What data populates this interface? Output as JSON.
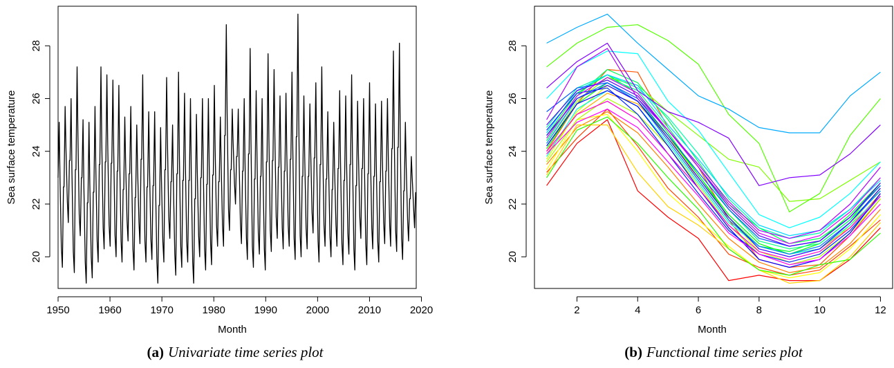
{
  "captions": {
    "a": {
      "label": "(a)",
      "text": "Univariate time series plot"
    },
    "b": {
      "label": "(b)",
      "text": "Functional time series plot"
    }
  },
  "chart_data": [
    {
      "type": "line",
      "xlabel": "Month",
      "ylabel": "Sea surface temperature",
      "xlim": [
        1950,
        2019
      ],
      "ylim": [
        18.8,
        29.5
      ],
      "xticks": [
        1950,
        1960,
        1970,
        1980,
        1990,
        2000,
        2010,
        2020
      ],
      "yticks": [
        20,
        22,
        24,
        26,
        28
      ],
      "color": "#000000",
      "peaks": [
        25.1,
        25.7,
        26.0,
        27.2,
        25.2,
        25.1,
        25.7,
        27.2,
        26.9,
        26.7,
        26.5,
        25.3,
        25.7,
        25.0,
        26.9,
        25.5,
        25.5,
        24.9,
        26.8,
        25.0,
        27.0,
        26.2,
        26.0,
        25.4,
        26.0,
        26.0,
        26.5,
        25.3,
        28.8,
        25.6,
        25.6,
        26.0,
        27.9,
        26.3,
        26.0,
        27.7,
        27.1,
        26.1,
        26.2,
        27.0,
        29.2,
        26.1,
        25.8,
        26.6,
        27.2,
        25.5,
        25.1,
        26.3,
        26.1,
        26.9,
        25.9,
        26.0,
        26.6,
        25.8,
        25.9,
        26.0,
        27.8,
        28.1,
        25.1,
        23.8
      ],
      "troughs": [
        19.6,
        21.3,
        19.4,
        20.8,
        19.0,
        19.2,
        19.8,
        20.3,
        20.4,
        20.0,
        19.8,
        20.6,
        19.5,
        20.5,
        19.8,
        19.9,
        19.0,
        19.8,
        20.7,
        19.3,
        19.6,
        19.8,
        19.0,
        20.0,
        19.5,
        19.7,
        20.4,
        20.4,
        21.0,
        22.0,
        20.5,
        19.9,
        19.6,
        20.1,
        19.5,
        20.2,
        20.7,
        20.3,
        20.4,
        19.9,
        20.0,
        20.3,
        20.9,
        19.8,
        20.4,
        20.0,
        20.4,
        19.7,
        20.1,
        19.5,
        20.7,
        19.7,
        20.3,
        19.8,
        20.5,
        20.4,
        20.2,
        19.9,
        20.6,
        21.1
      ]
    },
    {
      "type": "line",
      "xlabel": "Month",
      "ylabel": "Sea surface temperature",
      "xlim": [
        0.6,
        12.4
      ],
      "ylim": [
        18.8,
        29.5
      ],
      "xticks": [
        2,
        4,
        6,
        8,
        10,
        12
      ],
      "yticks": [
        20,
        22,
        24,
        26,
        28
      ],
      "x": [
        1,
        2,
        3,
        4,
        5,
        6,
        7,
        8,
        9,
        10,
        11,
        12
      ],
      "series": [
        {
          "color": "#ff0000",
          "values": [
            22.7,
            24.3,
            25.2,
            22.5,
            21.5,
            20.7,
            19.1,
            19.3,
            19.1,
            19.1,
            19.9,
            21.1
          ]
        },
        {
          "color": "#ff4000",
          "values": [
            23.2,
            24.5,
            25.6,
            24.2,
            22.6,
            21.5,
            20.1,
            19.6,
            19.3,
            19.5,
            20.4,
            21.4
          ]
        },
        {
          "color": "#ff5500",
          "values": [
            24.0,
            25.8,
            27.1,
            27.0,
            24.9,
            23.4,
            21.4,
            19.9,
            19.6,
            19.7,
            20.8,
            22.2
          ]
        },
        {
          "color": "#ff8000",
          "values": [
            23.5,
            24.9,
            25.5,
            24.7,
            23.4,
            22.0,
            20.7,
            19.8,
            19.4,
            19.6,
            20.5,
            21.8
          ]
        },
        {
          "color": "#ffaa00",
          "values": [
            23.9,
            25.4,
            26.2,
            25.8,
            24.6,
            22.9,
            21.4,
            20.4,
            20.1,
            20.3,
            21.1,
            22.4
          ]
        },
        {
          "color": "#ffd200",
          "values": [
            23.1,
            25.0,
            25.0,
            23.2,
            21.9,
            21.2,
            20.3,
            19.5,
            19.0,
            19.1,
            20.0,
            21.3
          ]
        },
        {
          "color": "#ffff00",
          "values": [
            23.3,
            25.2,
            25.4,
            24.0,
            22.4,
            21.4,
            20.4,
            19.5,
            19.2,
            19.4,
            20.3,
            21.6
          ]
        },
        {
          "color": "#d4ff00",
          "values": [
            23.7,
            25.5,
            26.5,
            25.9,
            24.5,
            23.1,
            21.5,
            20.2,
            19.8,
            20.1,
            21.2,
            22.6
          ]
        },
        {
          "color": "#aaff00",
          "values": [
            23.6,
            25.2,
            26.0,
            25.4,
            24.2,
            22.7,
            21.2,
            20.1,
            19.7,
            20.0,
            20.9,
            22.2
          ]
        },
        {
          "color": "#80ff00",
          "values": [
            24.2,
            25.9,
            26.8,
            26.5,
            25.5,
            24.6,
            23.7,
            23.4,
            22.1,
            22.2,
            22.9,
            23.6
          ]
        },
        {
          "color": "#55ff00",
          "values": [
            27.2,
            28.1,
            28.7,
            28.8,
            28.2,
            27.3,
            25.4,
            24.3,
            21.7,
            22.4,
            24.6,
            26.0
          ]
        },
        {
          "color": "#2aff00",
          "values": [
            23.0,
            24.8,
            25.3,
            24.3,
            23.0,
            21.8,
            20.3,
            19.5,
            19.3,
            19.7,
            19.9,
            20.9
          ]
        },
        {
          "color": "#00ff00",
          "values": [
            24.1,
            25.8,
            26.6,
            25.9,
            24.6,
            23.1,
            21.6,
            20.5,
            20.1,
            20.5,
            21.4,
            22.8
          ]
        },
        {
          "color": "#00ff2a",
          "values": [
            24.6,
            26.2,
            26.9,
            26.2,
            24.7,
            23.1,
            21.5,
            20.4,
            20.2,
            20.6,
            21.6,
            22.8
          ]
        },
        {
          "color": "#00ff55",
          "values": [
            24.4,
            26.1,
            27.1,
            26.6,
            25.2,
            23.6,
            22.0,
            21.1,
            20.5,
            20.7,
            21.5,
            22.7
          ]
        },
        {
          "color": "#00ff80",
          "values": [
            24.5,
            26.1,
            26.8,
            26.3,
            24.9,
            23.4,
            21.8,
            20.6,
            20.3,
            20.5,
            21.4,
            22.5
          ]
        },
        {
          "color": "#00ffaa",
          "values": [
            24.9,
            26.4,
            26.9,
            26.4,
            25.3,
            23.9,
            22.2,
            21.1,
            20.7,
            20.9,
            21.8,
            23.0
          ]
        },
        {
          "color": "#00ffd4",
          "values": [
            23.8,
            25.6,
            26.3,
            25.7,
            24.3,
            22.8,
            21.3,
            20.4,
            20.1,
            20.3,
            21.2,
            22.3
          ]
        },
        {
          "color": "#00ffff",
          "values": [
            26.0,
            27.2,
            27.8,
            27.7,
            25.9,
            24.8,
            23.2,
            21.6,
            21.1,
            21.5,
            22.4,
            23.6
          ]
        },
        {
          "color": "#00d4ff",
          "values": [
            24.7,
            26.3,
            26.9,
            26.5,
            25.0,
            23.7,
            22.3,
            21.2,
            20.8,
            21.0,
            21.8,
            22.9
          ]
        },
        {
          "color": "#00aaff",
          "values": [
            28.1,
            28.7,
            29.2,
            28.1,
            27.1,
            26.1,
            25.6,
            24.9,
            24.7,
            24.7,
            26.1,
            27.0
          ]
        },
        {
          "color": "#0080ff",
          "values": [
            24.3,
            26.0,
            26.6,
            25.9,
            24.4,
            22.9,
            21.4,
            20.4,
            20.1,
            20.4,
            21.3,
            22.5
          ]
        },
        {
          "color": "#0055ff",
          "values": [
            25.5,
            26.4,
            26.6,
            26.0,
            24.6,
            23.2,
            21.8,
            20.7,
            20.4,
            20.6,
            21.5,
            22.7
          ]
        },
        {
          "color": "#002aff",
          "values": [
            24.8,
            26.2,
            26.4,
            25.4,
            23.9,
            22.4,
            21.0,
            20.1,
            19.8,
            20.1,
            21.0,
            22.3
          ]
        },
        {
          "color": "#0000ff",
          "values": [
            24.2,
            25.8,
            26.3,
            25.7,
            24.2,
            22.6,
            21.1,
            19.9,
            19.6,
            19.9,
            20.9,
            22.4
          ]
        },
        {
          "color": "#2a00ff",
          "values": [
            24.6,
            26.0,
            26.5,
            25.9,
            24.5,
            23.0,
            21.5,
            20.3,
            20.0,
            20.3,
            21.3,
            22.6
          ]
        },
        {
          "color": "#5500ff",
          "values": [
            25.0,
            26.3,
            26.7,
            26.1,
            24.8,
            23.4,
            21.9,
            20.8,
            20.4,
            20.6,
            21.5,
            22.8
          ]
        },
        {
          "color": "#8000ff",
          "values": [
            26.4,
            27.4,
            28.1,
            26.3,
            25.5,
            25.1,
            24.5,
            22.7,
            23.0,
            23.1,
            23.9,
            25.0
          ]
        },
        {
          "color": "#aa00ff",
          "values": [
            25.2,
            27.2,
            27.9,
            26.0,
            24.8,
            23.5,
            22.1,
            21.0,
            20.7,
            21.0,
            22.0,
            23.4
          ]
        },
        {
          "color": "#d400ff",
          "values": [
            24.5,
            26.1,
            26.8,
            26.2,
            24.8,
            23.4,
            22.0,
            20.9,
            20.5,
            20.8,
            21.7,
            23.0
          ]
        },
        {
          "color": "#ff00ff",
          "values": [
            23.9,
            25.1,
            25.6,
            24.9,
            23.6,
            22.3,
            20.9,
            20.1,
            19.7,
            19.9,
            20.8,
            22.0
          ]
        },
        {
          "color": "#ff00d4",
          "values": [
            24.0,
            25.4,
            25.9,
            25.2,
            23.9,
            22.6,
            21.2,
            20.2,
            19.9,
            20.2,
            21.1,
            22.3
          ]
        }
      ]
    }
  ]
}
